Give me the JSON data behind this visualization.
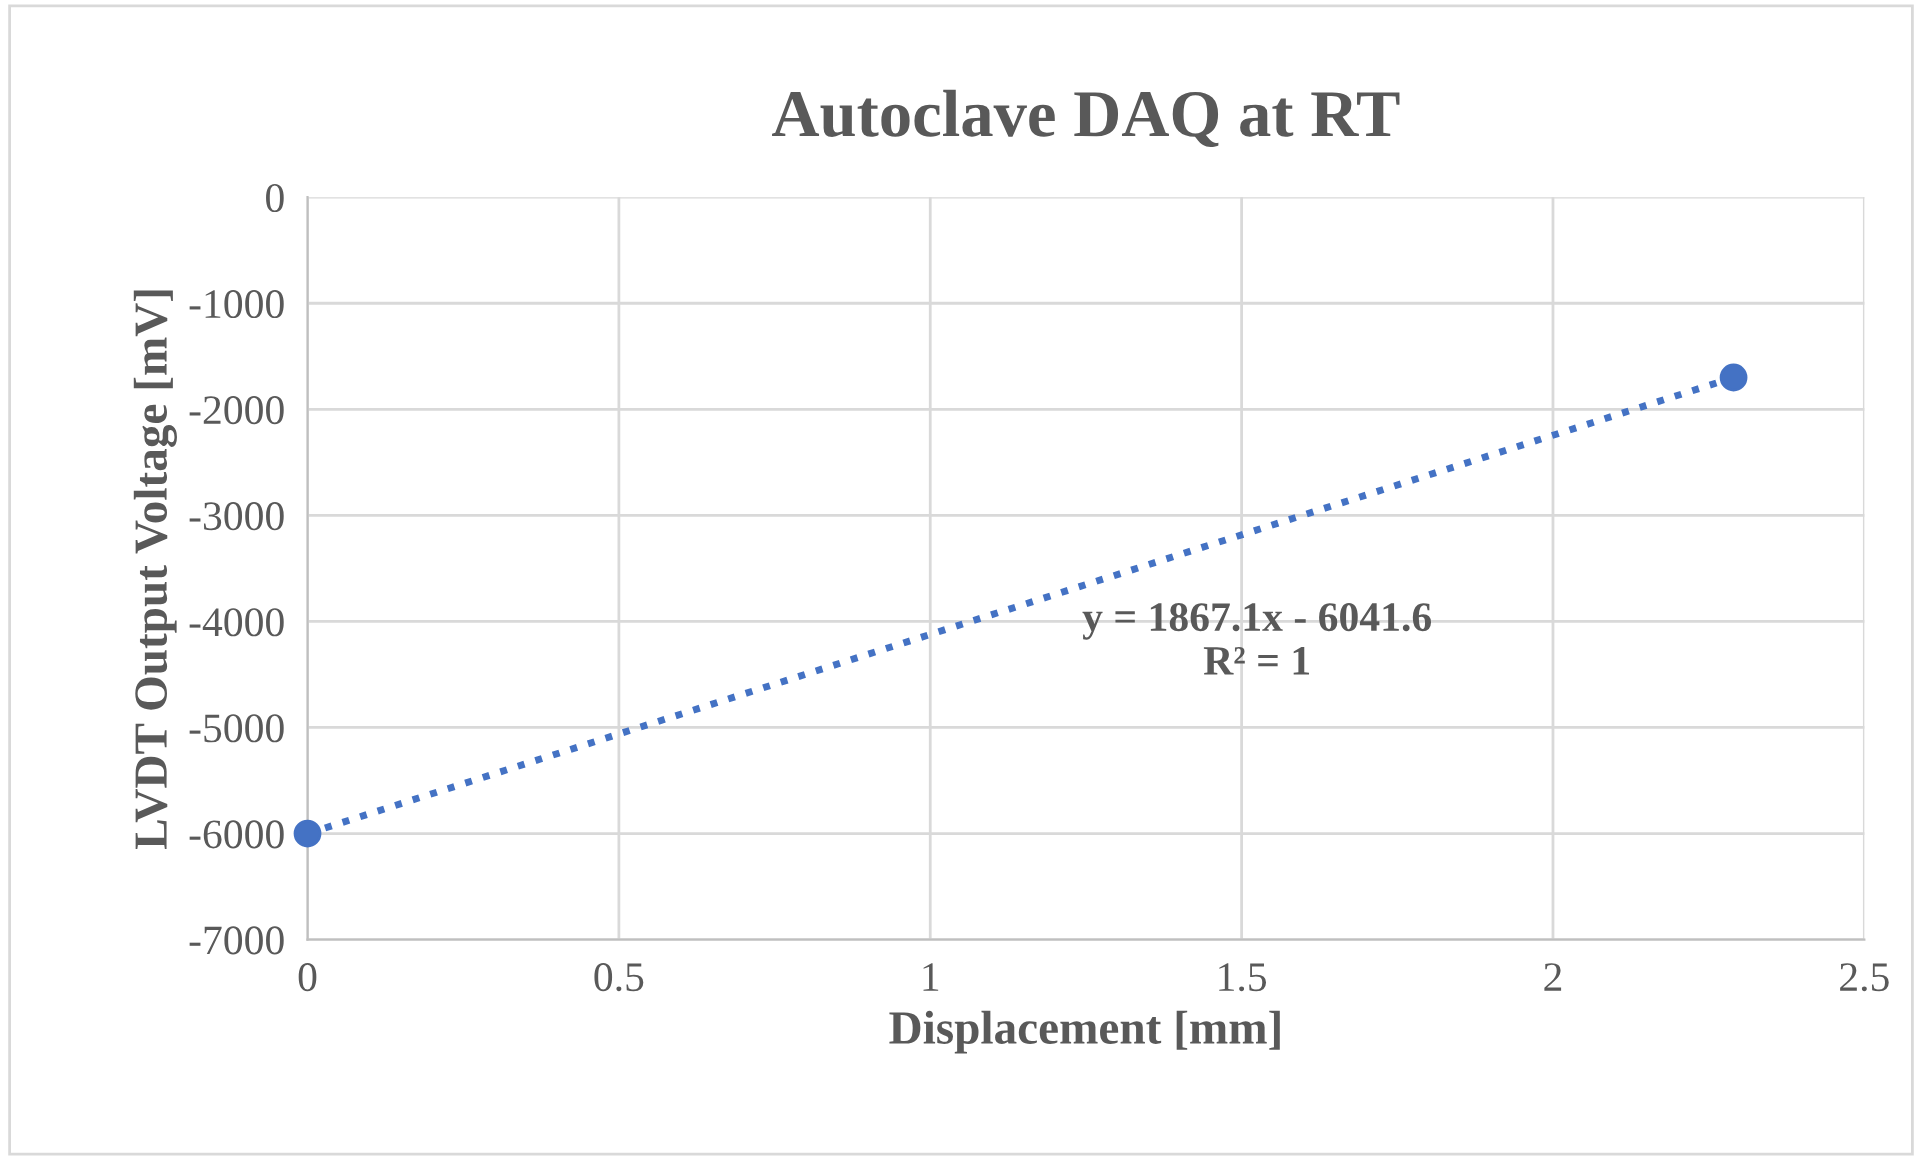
{
  "chart_data": {
    "type": "line",
    "title": "Autoclave DAQ at RT",
    "xlabel": "Displacement [mm]",
    "ylabel": "LVDT Output Voltage [mV]",
    "annotations": [
      "y = 1867.1x - 6041.6\nR² = 1"
    ],
    "series": [
      {
        "color": "#4472c4",
        "x": [
          0,
          2.29
        ],
        "values": [
          -6000,
          -1700
        ],
        "line_style": "dotted",
        "marker": "circle"
      }
    ],
    "xlim": [
      0,
      2.5
    ],
    "xticks": [
      0,
      0.5,
      1,
      1.5,
      2,
      2.5
    ],
    "ylim": [
      -7000,
      0
    ],
    "yticks": [
      0,
      -1000,
      -2000,
      -3000,
      -4000,
      -5000,
      -6000,
      -7000
    ],
    "grid": true,
    "legend": false
  }
}
